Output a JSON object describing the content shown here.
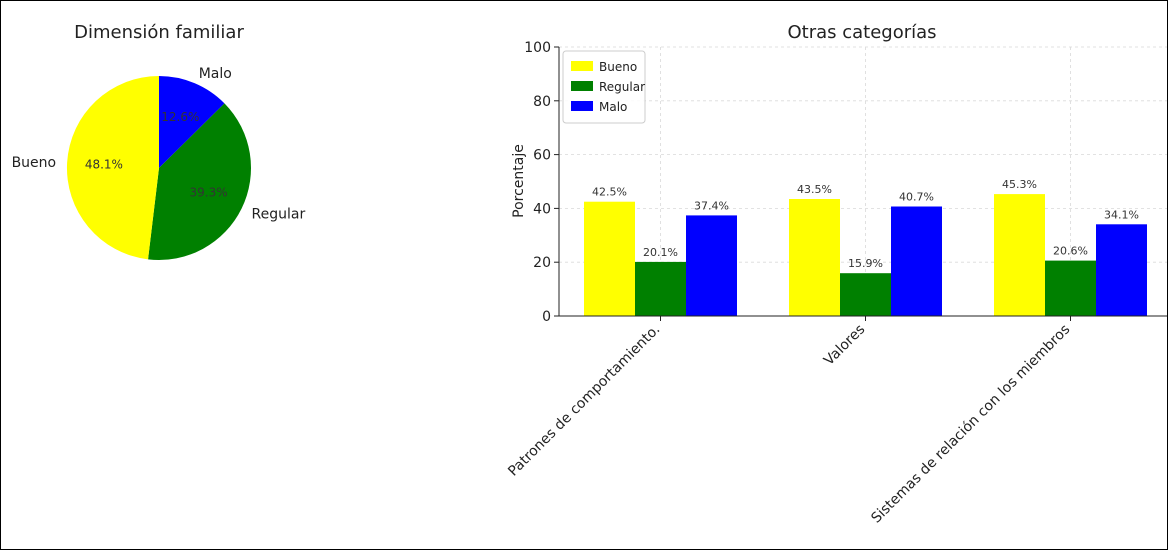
{
  "chart_data": [
    {
      "type": "pie",
      "title": "Dimensión familiar",
      "labels": [
        "Malo",
        "Regular",
        "Bueno"
      ],
      "values": [
        12.6,
        39.3,
        48.1
      ],
      "value_labels": [
        "12.6%",
        "39.3%",
        "48.1%"
      ],
      "colors": [
        "#0000ff",
        "#008000",
        "#ffff00"
      ],
      "start_angle_deg": 90,
      "direction": "clockwise"
    },
    {
      "type": "bar",
      "title": "Otras categorías",
      "xlabel": "",
      "ylabel": "Porcentaje",
      "ylim": [
        0,
        100
      ],
      "yticks": [
        "0",
        "20",
        "40",
        "60",
        "80",
        "100"
      ],
      "categories": [
        "Patrones de comportamiento.",
        "Valores",
        "Sistemas de relación con los miembros"
      ],
      "series": [
        {
          "name": "Bueno",
          "color": "#ffff00",
          "values": [
            42.5,
            43.5,
            45.3
          ],
          "labels": [
            "42.5%",
            "43.5%",
            "45.3%"
          ]
        },
        {
          "name": "Regular",
          "color": "#008000",
          "values": [
            20.1,
            15.9,
            20.6
          ],
          "labels": [
            "20.1%",
            "15.9%",
            "20.6%"
          ]
        },
        {
          "name": "Malo",
          "color": "#0000ff",
          "values": [
            37.4,
            40.7,
            34.1
          ],
          "labels": [
            "37.4%",
            "40.7%",
            "34.1%"
          ]
        }
      ],
      "grid": true,
      "legend": "top-left"
    }
  ]
}
